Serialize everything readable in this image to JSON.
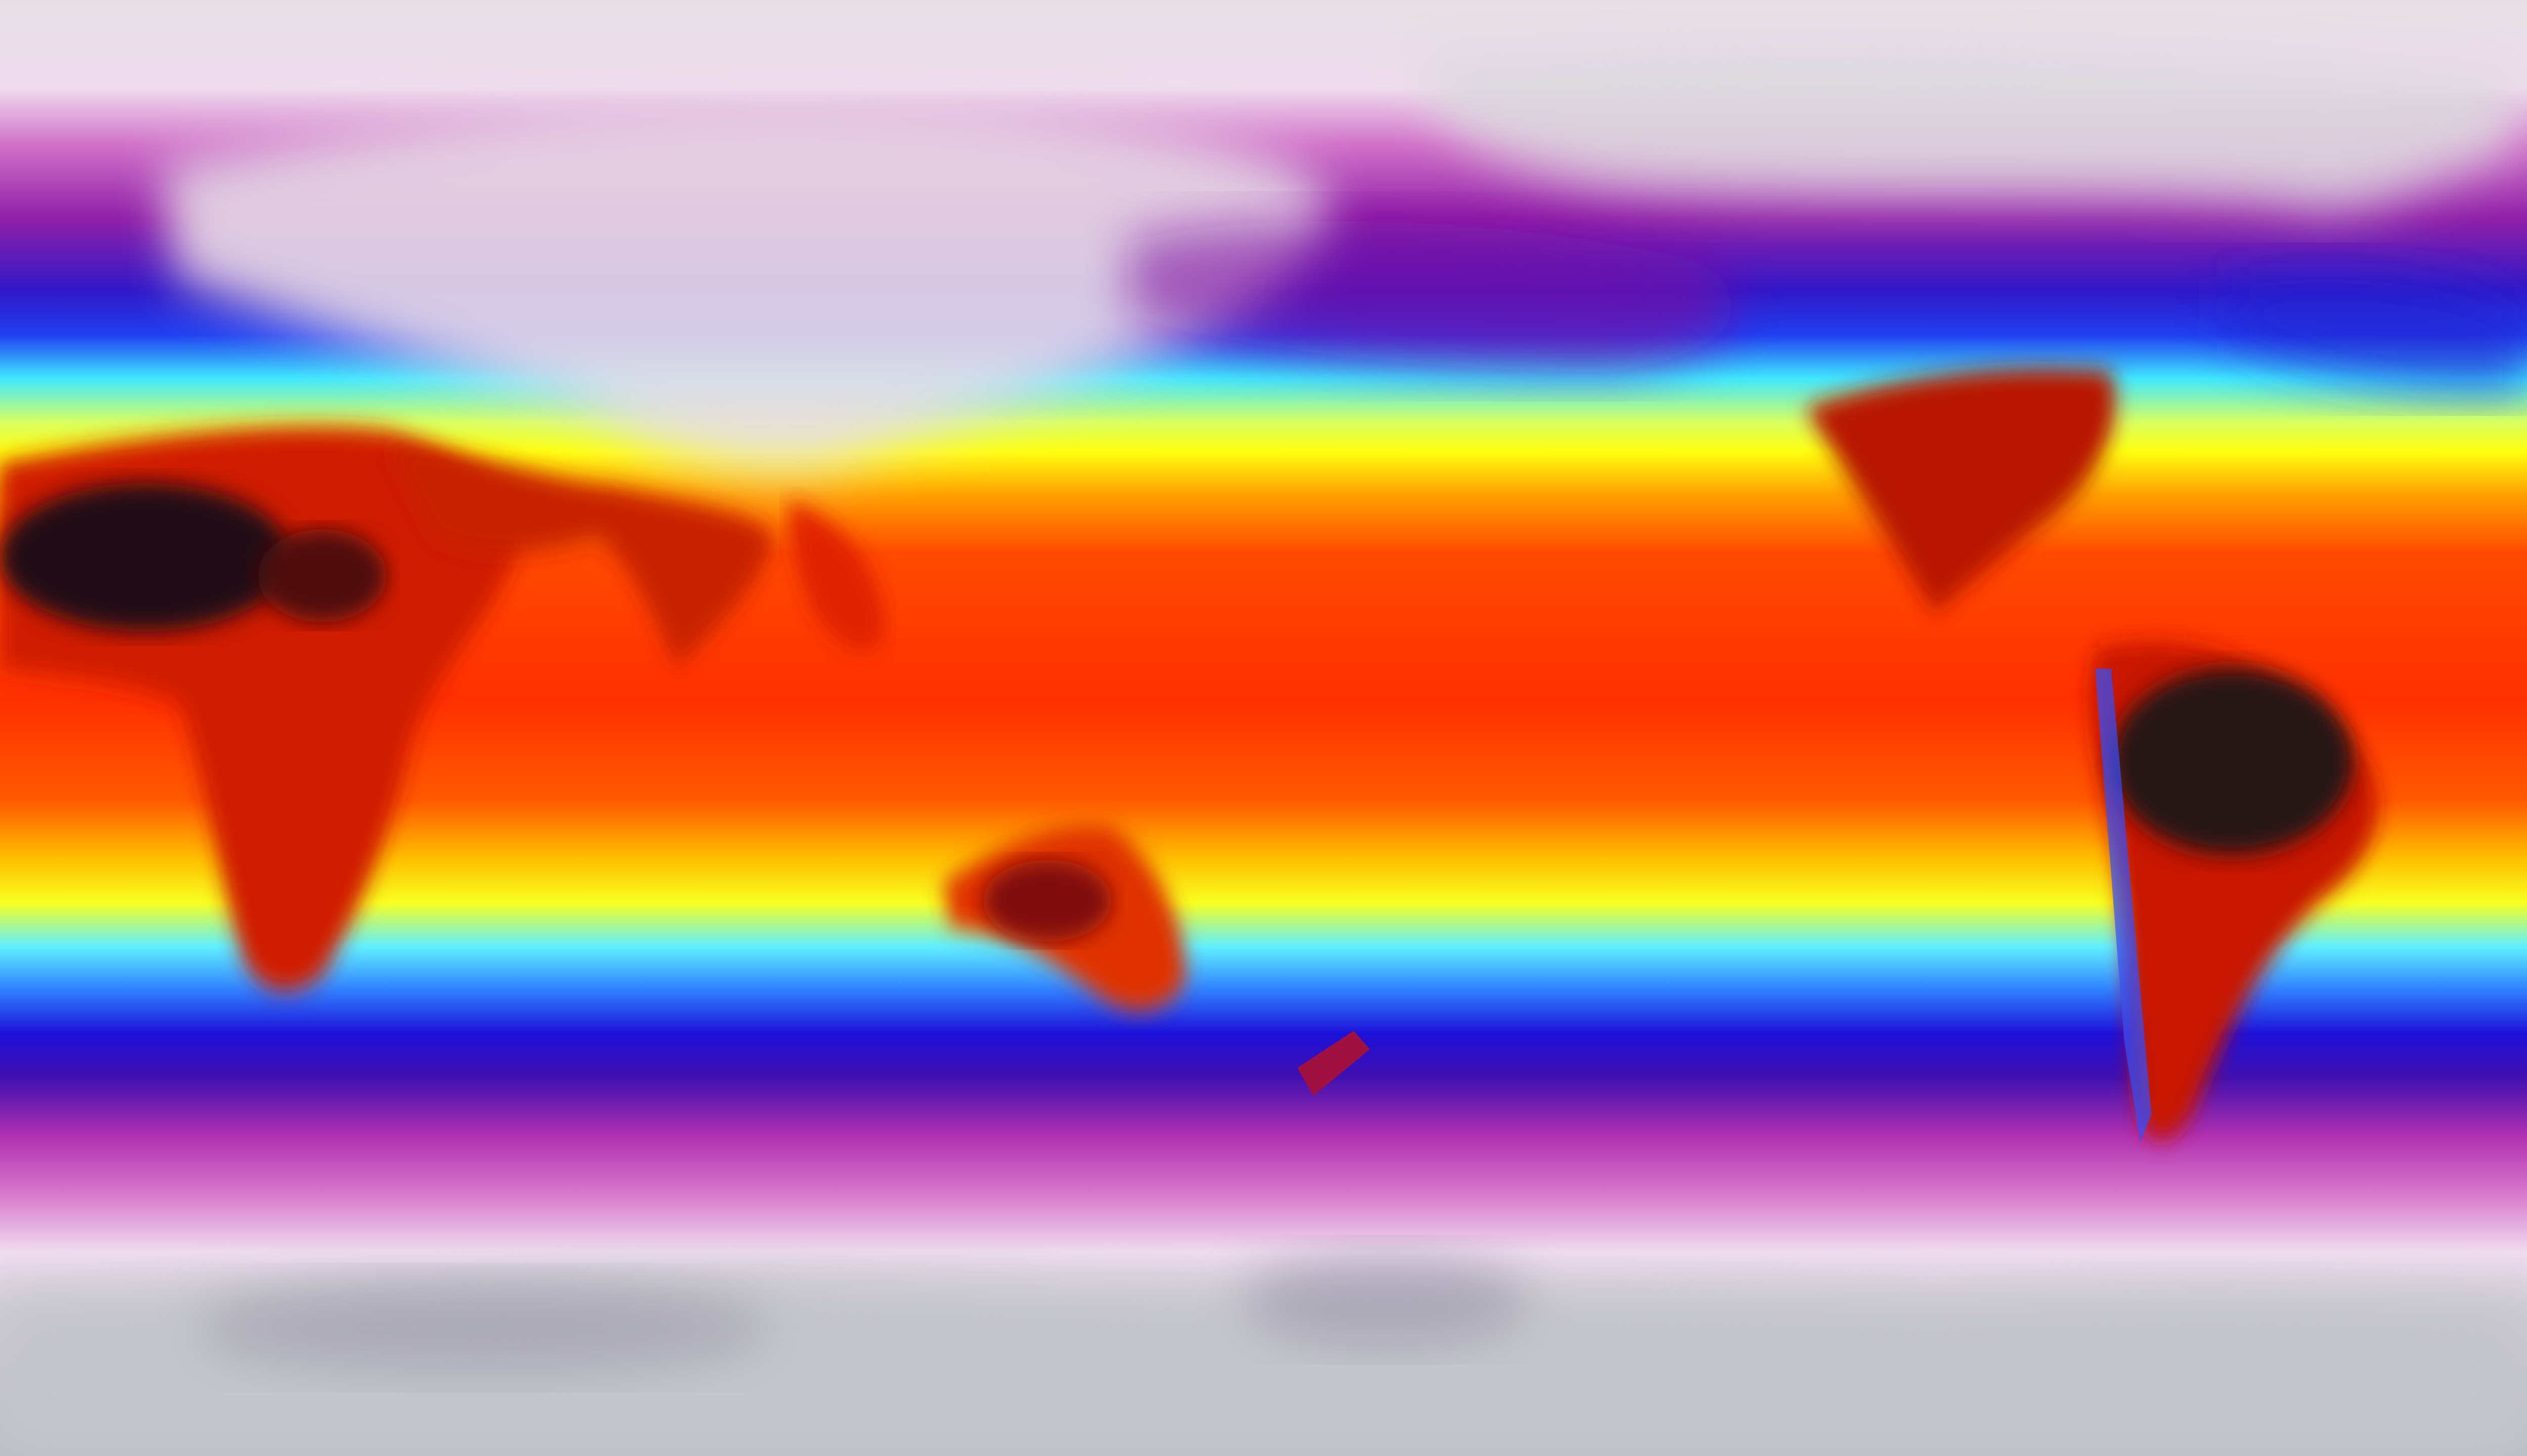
{
  "map": {
    "projection": "equirectangular",
    "variable": "temperature",
    "colors": {
      "polar_cold": "#c0c2c8",
      "very_cold": "#f0dcee",
      "cold_magenta": "#c040b0",
      "cold_purple": "#6a10a8",
      "cool_blue": "#1a1ad8",
      "mild_cyan": "#40e8ff",
      "warm_yellow": "#ffff10",
      "hot_orange": "#ff8a00",
      "hot_red": "#ff3000",
      "extreme_dark": "#2a1418"
    }
  }
}
